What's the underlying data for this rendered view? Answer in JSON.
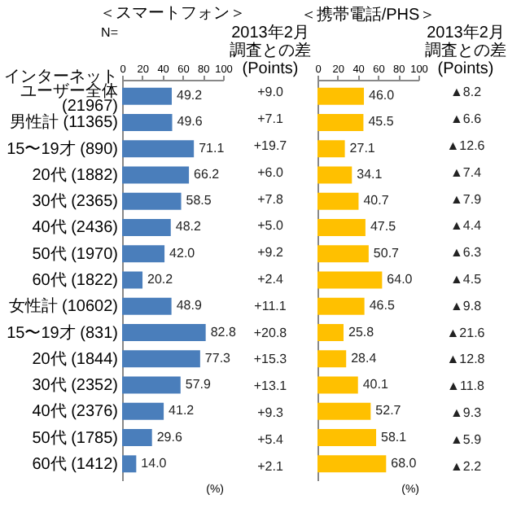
{
  "chart_data": [
    {
      "type": "bar",
      "orientation": "horizontal",
      "title": "＜スマートフォン＞",
      "ylabel": "N=",
      "xlabel": "(%)",
      "categories": [
        "インターネットユーザー全体 (21967)",
        "男性計 (11365)",
        "15〜19才 (890)",
        "20代 (1882)",
        "30代 (2365)",
        "40代 (2436)",
        "50代 (1970)",
        "60代 (1822)",
        "女性計 (10602)",
        "15〜19才 (831)",
        "20代 (1844)",
        "30代 (2352)",
        "40代 (2376)",
        "50代 (1785)",
        "60代 (1412)"
      ],
      "values": [
        49.2,
        49.6,
        71.1,
        66.2,
        58.5,
        48.2,
        42.0,
        20.2,
        48.9,
        82.8,
        77.3,
        57.9,
        41.2,
        29.6,
        14.0
      ],
      "color": "#4a7ebb",
      "xlim": [
        0,
        100
      ],
      "xticks": [
        0,
        20,
        40,
        60,
        80,
        100
      ],
      "value_labels": [
        "49.2",
        "49.6",
        "71.1",
        "66.2",
        "58.5",
        "48.2",
        "42.0",
        "20.2",
        "48.9",
        "82.8",
        "77.3",
        "57.9",
        "41.2",
        "29.6",
        "14.0"
      ],
      "annotations": [
        "2013年2月調査との差(Points)",
        "+9.0",
        "+7.1",
        "+19.7",
        "+6.0",
        "+7.8",
        "+5.0",
        "+9.2",
        "+2.4",
        "+11.1",
        "+20.8",
        "+15.3",
        "+13.1",
        "+9.3",
        "+5.4",
        "+2.1"
      ]
    },
    {
      "type": "bar",
      "orientation": "horizontal",
      "title": "＜携帯電話/PHS＞",
      "xlabel": "(%)",
      "tick_labels": "x",
      "categories": [
        "インターネットユーザー全体 (21967)",
        "男性計 (11365)",
        "15〜19才 (890)",
        "20代 (1882)",
        "30代 (2365)",
        "40代 (2436)",
        "50代 (1970)",
        "60代 (1822)",
        "女性計 (10602)",
        "15〜19才 (831)",
        "20代 (1844)",
        "30代 (2352)",
        "40代 (2376)",
        "50代 (1785)",
        "60代 (1412)"
      ],
      "values": [
        46.0,
        45.5,
        27.1,
        34.1,
        40.7,
        47.5,
        50.7,
        64.0,
        46.5,
        25.8,
        28.4,
        40.1,
        52.7,
        58.1,
        68.0
      ],
      "color": "#ffc000",
      "xlim": [
        0,
        100
      ],
      "xticks": [
        0,
        20,
        40,
        60,
        80,
        100
      ],
      "value_labels": [
        "46.0",
        "45.5",
        "27.1",
        "34.1",
        "40.7",
        "47.5",
        "50.7",
        "64.0",
        "46.5",
        "25.8",
        "28.4",
        "40.1",
        "52.7",
        "58.1",
        "68.0"
      ],
      "annotations": [
        "2013年2月調査との差(Points)",
        "▲8.2",
        "▲6.6",
        "▲12.6",
        "▲7.4",
        "▲7.9",
        "▲4.4",
        "▲6.3",
        "▲4.5",
        "▲9.8",
        "▲21.6",
        "▲12.8",
        "▲11.8",
        "▲9.3",
        "▲5.9",
        "▲2.2"
      ]
    }
  ]
}
